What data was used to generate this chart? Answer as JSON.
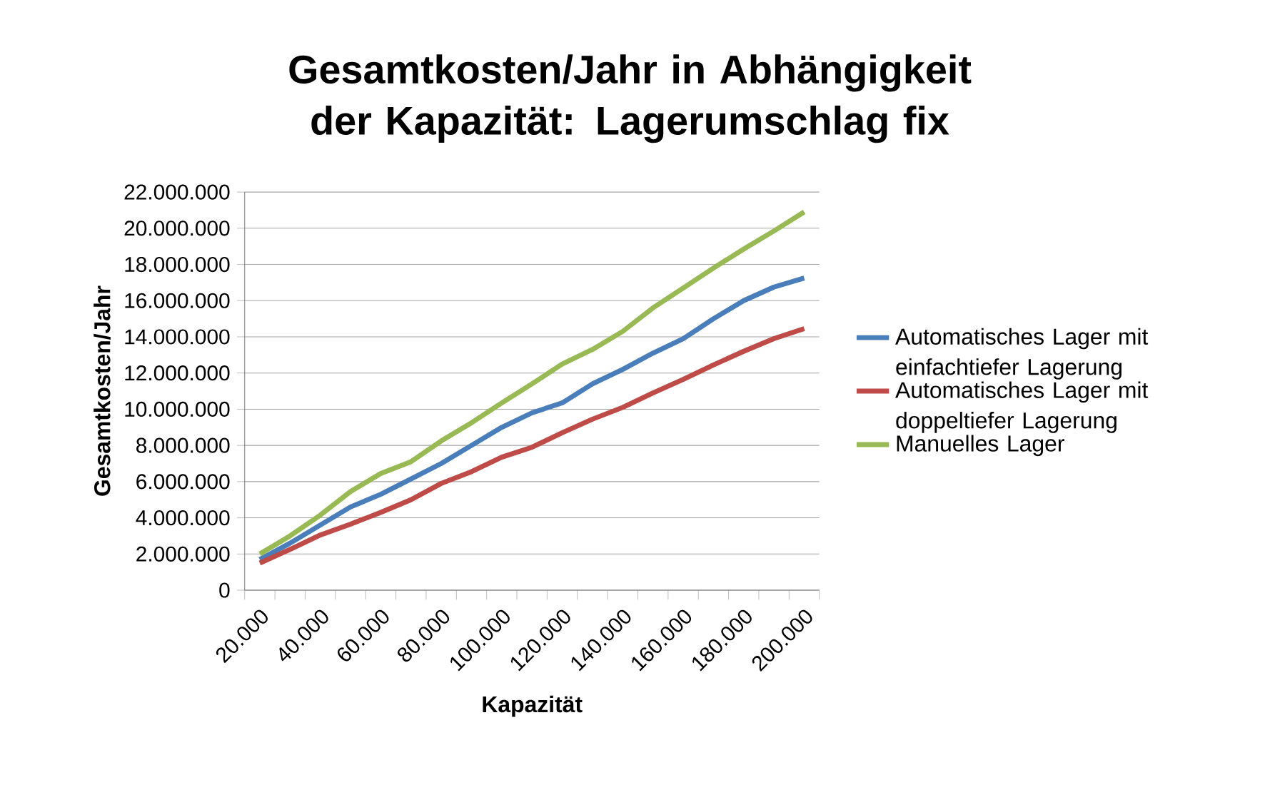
{
  "chart_data": {
    "type": "line",
    "title": "Gesamtkosten/Jahr in Abhängigkeit der Kapazität: Lagerumschlag fix",
    "xlabel": "Kapazität",
    "ylabel": "Gesamtkosten/Jahr",
    "categories": [
      "20.000",
      null,
      "40.000",
      null,
      "60.000",
      null,
      "80.000",
      null,
      "100.000",
      null,
      "120.000",
      null,
      "140.000",
      null,
      "160.000",
      null,
      "180.000",
      null,
      "200.000"
    ],
    "series": [
      {
        "name": "Automatisches Lager mit einfachtiefer Lagerung",
        "color": "#4a7ebb",
        "values": [
          1700000,
          2600000,
          3600000,
          4600000,
          5300000,
          6150000,
          7000000,
          8000000,
          9000000,
          9800000,
          10350000,
          11400000,
          12200000,
          13100000,
          13900000,
          15000000,
          16000000,
          16750000,
          17250000
        ]
      },
      {
        "name": "Automatisches Lager mit doppeltiefer Lagerung",
        "color": "#be4b48",
        "values": [
          1500000,
          2250000,
          3050000,
          3650000,
          4300000,
          5000000,
          5900000,
          6550000,
          7350000,
          7900000,
          8700000,
          9450000,
          10100000,
          10900000,
          11650000,
          12450000,
          13200000,
          13900000,
          14450000
        ]
      },
      {
        "name": "Manuelles Lager",
        "color": "#98b954",
        "values": [
          2000000,
          3000000,
          4150000,
          5450000,
          6450000,
          7100000,
          8250000,
          9250000,
          10350000,
          11400000,
          12500000,
          13300000,
          14300000,
          15600000,
          16700000,
          17800000,
          18850000,
          19850000,
          20900000
        ]
      }
    ],
    "ylim": [
      0,
      22000000
    ],
    "yticks": [
      {
        "value": 0,
        "label": "0"
      },
      {
        "value": 2000000,
        "label": "2.000.000"
      },
      {
        "value": 4000000,
        "label": "4.000.000"
      },
      {
        "value": 6000000,
        "label": "6.000.000"
      },
      {
        "value": 8000000,
        "label": "8.000.000"
      },
      {
        "value": 10000000,
        "label": "10.000.000"
      },
      {
        "value": 12000000,
        "label": "12.000.000"
      },
      {
        "value": 14000000,
        "label": "14.000.000"
      },
      {
        "value": 16000000,
        "label": "16.000.000"
      },
      {
        "value": 18000000,
        "label": "18.000.000"
      },
      {
        "value": 20000000,
        "label": "20.000.000"
      },
      {
        "value": 22000000,
        "label": "22.000.000"
      }
    ],
    "grid": "y",
    "legend": "right",
    "marker": "none",
    "line_style": "solid"
  }
}
